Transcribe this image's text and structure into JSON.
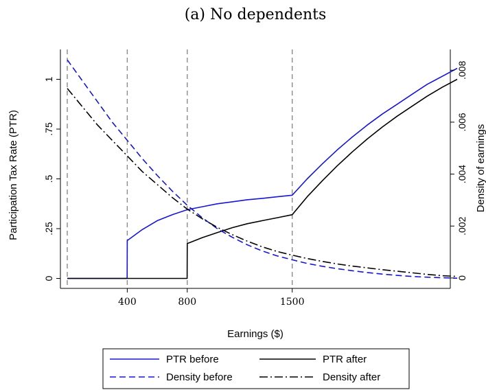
{
  "chart_data": {
    "type": "line",
    "title": "(a) No dependents",
    "xlabel": "Earnings ($)",
    "ylabel_left": "Participation Tax Rate (PTR)",
    "ylabel_right": "Density of earnings",
    "xlim": [
      0,
      2600
    ],
    "ylim_left": [
      -0.05,
      1.15
    ],
    "ylim_right": [
      -0.0004,
      0.0088
    ],
    "x_ticks": [
      {
        "value": 400,
        "label": "400"
      },
      {
        "value": 800,
        "label": "800"
      },
      {
        "value": 1500,
        "label": "1500"
      }
    ],
    "y_left_ticks": [
      {
        "value": 0,
        "label": "0"
      },
      {
        "value": 0.25,
        "label": ".25"
      },
      {
        "value": 0.5,
        "label": ".5"
      },
      {
        "value": 0.75,
        "label": ".75"
      },
      {
        "value": 1,
        "label": "1"
      }
    ],
    "y_right_ticks": [
      {
        "value": 0,
        "label": "0"
      },
      {
        "value": 0.002,
        "label": ".002"
      },
      {
        "value": 0.004,
        "label": ".004"
      },
      {
        "value": 0.006,
        "label": ".006"
      },
      {
        "value": 0.008,
        "label": ".008"
      }
    ],
    "vlines": [
      0,
      400,
      800,
      1500
    ],
    "grid": false,
    "legend_position": "bottom",
    "series": [
      {
        "name": "PTR before",
        "axis": "left",
        "color": "#1515d6",
        "style": "solid",
        "x": [
          0,
          399,
          400,
          500,
          600,
          700,
          800,
          900,
          1000,
          1100,
          1200,
          1300,
          1400,
          1500,
          1600,
          1700,
          1800,
          1900,
          2000,
          2100,
          2200,
          2300,
          2400,
          2500,
          2600
        ],
        "y": [
          0,
          0,
          0.19,
          0.245,
          0.29,
          0.32,
          0.345,
          0.36,
          0.375,
          0.385,
          0.395,
          0.402,
          0.41,
          0.418,
          0.5,
          0.575,
          0.645,
          0.71,
          0.77,
          0.825,
          0.875,
          0.925,
          0.975,
          1.015,
          1.055
        ]
      },
      {
        "name": "PTR after",
        "axis": "left",
        "color": "#000000",
        "style": "solid",
        "x": [
          0,
          799,
          800,
          900,
          1000,
          1100,
          1200,
          1300,
          1400,
          1500,
          1600,
          1700,
          1800,
          1900,
          2000,
          2100,
          2200,
          2300,
          2400,
          2500,
          2600
        ],
        "y": [
          0,
          0,
          0.175,
          0.205,
          0.23,
          0.255,
          0.275,
          0.29,
          0.305,
          0.32,
          0.41,
          0.49,
          0.565,
          0.635,
          0.7,
          0.76,
          0.815,
          0.865,
          0.915,
          0.96,
          1.0
        ]
      },
      {
        "name": "Density before",
        "axis": "right",
        "color": "#1515d6",
        "style": "dashed",
        "x": [
          0,
          100,
          200,
          300,
          400,
          500,
          600,
          700,
          800,
          900,
          1000,
          1100,
          1200,
          1300,
          1400,
          1500,
          1600,
          1700,
          1800,
          1900,
          2000,
          2100,
          2200,
          2300,
          2400,
          2500,
          2600
        ],
        "y": [
          0.0084,
          0.0076,
          0.0068,
          0.006,
          0.0053,
          0.0046,
          0.00395,
          0.00335,
          0.0028,
          0.00232,
          0.0019,
          0.00157,
          0.00128,
          0.00104,
          0.00085,
          0.0007,
          0.00056,
          0.00045,
          0.00036,
          0.00028,
          0.00021,
          0.00015,
          0.0001,
          6e-05,
          3e-05,
          1e-05,
          -1e-05
        ]
      },
      {
        "name": "Density after",
        "axis": "right",
        "color": "#000000",
        "style": "dashdot",
        "x": [
          0,
          100,
          200,
          300,
          400,
          500,
          600,
          700,
          800,
          900,
          1000,
          1100,
          1200,
          1300,
          1400,
          1500,
          1600,
          1700,
          1800,
          1900,
          2000,
          2100,
          2200,
          2300,
          2400,
          2500,
          2600
        ],
        "y": [
          0.0073,
          0.0066,
          0.0059,
          0.0053,
          0.0047,
          0.0041,
          0.0036,
          0.0031,
          0.00265,
          0.00228,
          0.00195,
          0.00167,
          0.00142,
          0.0012,
          0.00102,
          0.00088,
          0.00075,
          0.00064,
          0.00054,
          0.00046,
          0.00039,
          0.00032,
          0.00026,
          0.0002,
          0.00014,
          9e-05,
          6e-05
        ]
      }
    ]
  }
}
